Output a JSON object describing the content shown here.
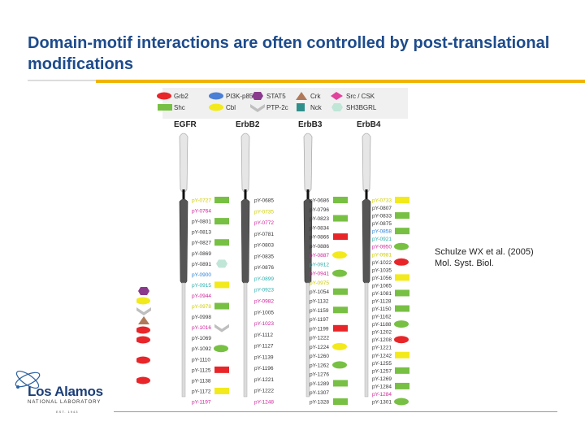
{
  "slide": {
    "title": "Domain-motif interactions are often controlled by post-translational modifications",
    "citation_line1": "Schulze WX et al. (2005)",
    "citation_line2": "Mol. Syst. Biol."
  },
  "legend": {
    "items": [
      {
        "label": "Grb2",
        "color": "#e8262a",
        "shape": "ellipse"
      },
      {
        "label": "PI3K-p85",
        "color": "#4a7fd6",
        "shape": "ellipse"
      },
      {
        "label": "STAT5",
        "color": "#8a3a8c",
        "shape": "hexagon"
      },
      {
        "label": "Crk",
        "color": "#b07a5a",
        "shape": "triangle"
      },
      {
        "label": "Src / CSK",
        "color": "#e0449c",
        "shape": "diamond"
      },
      {
        "label": "Shc",
        "color": "#77c043",
        "shape": "rect"
      },
      {
        "label": "Cbl",
        "color": "#f2ea1c",
        "shape": "ellipse"
      },
      {
        "label": "PTP-2c",
        "color": "#bfbfbf",
        "shape": "chevron"
      },
      {
        "label": "Nck",
        "color": "#2f8f8a",
        "shape": "square"
      },
      {
        "label": "SH3BGRL",
        "color": "#bfe6d6",
        "shape": "hexagon"
      }
    ]
  },
  "receptors": [
    {
      "name": "EGFR",
      "sites": [
        {
          "label": "pY-0727",
          "color": "#cccc00",
          "binder": "rect"
        },
        {
          "label": "pY-0764",
          "color": "#cc2299",
          "binder": "none"
        },
        {
          "label": "pY-0801",
          "color": "#333333",
          "binder": "none"
        },
        {
          "label": "pY-0813",
          "color": "#333333",
          "binder": "none"
        },
        {
          "label": "pY-0827",
          "color": "#333333",
          "binder": "none"
        },
        {
          "label": "pY-0869",
          "color": "#333333",
          "binder": "rect"
        },
        {
          "label": "pY-0891",
          "color": "#333333",
          "binder": "hex"
        },
        {
          "label": "pY-0900",
          "color": "#2a7fd6",
          "binder": "none"
        },
        {
          "label": "pY-0915",
          "color": "#2aaaaa",
          "binder": "rect"
        },
        {
          "label": "pY-0944",
          "color": "#cc2299",
          "binder": "rect"
        },
        {
          "label": "pY-0978",
          "color": "#cccc00",
          "binder": "none"
        },
        {
          "label": "pY-0998",
          "color": "#333333",
          "binder": "none"
        },
        {
          "label": "pY-1016",
          "color": "#cc2299",
          "binder": "chev"
        },
        {
          "label": "pY-1069",
          "color": "#333333",
          "binder": "ellipse"
        },
        {
          "label": "pY-1092",
          "color": "#333333",
          "binder": "ellipse"
        },
        {
          "label": "pY-1110",
          "color": "#333333",
          "binder": "rect"
        },
        {
          "label": "pY-1125",
          "color": "#333333",
          "binder": "rect"
        },
        {
          "label": "pY-1138",
          "color": "#333333",
          "binder": "rect"
        },
        {
          "label": "pY-1172",
          "color": "#333333",
          "binder": "rect"
        },
        {
          "label": "pY-1197",
          "color": "#cc2299",
          "binder": "ellipse"
        }
      ]
    },
    {
      "name": "ErbB2",
      "sites": [
        {
          "label": "pY-0685",
          "color": "#333333"
        },
        {
          "label": "pY-0735",
          "color": "#cccc00"
        },
        {
          "label": "pY-0772",
          "color": "#cc2299"
        },
        {
          "label": "pY-0781",
          "color": "#333333"
        },
        {
          "label": "pY-0803",
          "color": "#333333"
        },
        {
          "label": "pY-0835",
          "color": "#333333"
        },
        {
          "label": "pY-0876",
          "color": "#333333"
        },
        {
          "label": "pY-0899",
          "color": "#2aaaaa"
        },
        {
          "label": "pY-0923",
          "color": "#2aaaaa"
        },
        {
          "label": "pY-0982",
          "color": "#cc2299"
        },
        {
          "label": "pY-1005",
          "color": "#333333"
        },
        {
          "label": "pY-1023",
          "color": "#cc2299"
        },
        {
          "label": "pY-1112",
          "color": "#333333"
        },
        {
          "label": "pY-1127",
          "color": "#333333"
        },
        {
          "label": "pY-1139",
          "color": "#333333"
        },
        {
          "label": "pY-1196",
          "color": "#333333"
        },
        {
          "label": "pY-1221",
          "color": "#333333"
        },
        {
          "label": "pY-1222",
          "color": "#333333"
        },
        {
          "label": "pY-1248",
          "color": "#cc2299"
        }
      ]
    },
    {
      "name": "ErbB3",
      "sites": [
        {
          "label": "pY-0686",
          "color": "#333333"
        },
        {
          "label": "pY-0796",
          "color": "#333333"
        },
        {
          "label": "pY-0823",
          "color": "#333333"
        },
        {
          "label": "pY-0834",
          "color": "#333333"
        },
        {
          "label": "pY-0866",
          "color": "#333333"
        },
        {
          "label": "pY-0886",
          "color": "#333333"
        },
        {
          "label": "pY-0887",
          "color": "#cc2299"
        },
        {
          "label": "pY-0912",
          "color": "#2aaaaa"
        },
        {
          "label": "pY-0941",
          "color": "#cc2299"
        },
        {
          "label": "pY-0975",
          "color": "#cccc00"
        },
        {
          "label": "pY-1054",
          "color": "#333333"
        },
        {
          "label": "pY-1132",
          "color": "#333333"
        },
        {
          "label": "pY-1159",
          "color": "#333333"
        },
        {
          "label": "pY-1197",
          "color": "#333333"
        },
        {
          "label": "pY-1199",
          "color": "#333333"
        },
        {
          "label": "pY-1222",
          "color": "#333333"
        },
        {
          "label": "pY-1224",
          "color": "#333333"
        },
        {
          "label": "pY-1260",
          "color": "#333333"
        },
        {
          "label": "pY-1262",
          "color": "#333333"
        },
        {
          "label": "pY-1276",
          "color": "#333333"
        },
        {
          "label": "pY-1289",
          "color": "#333333"
        },
        {
          "label": "pY-1307",
          "color": "#333333"
        },
        {
          "label": "pY-1328",
          "color": "#333333"
        }
      ]
    },
    {
      "name": "ErbB4",
      "sites": [
        {
          "label": "pY-0733",
          "color": "#cccc00"
        },
        {
          "label": "pY-0807",
          "color": "#333333"
        },
        {
          "label": "pY-0833",
          "color": "#333333"
        },
        {
          "label": "pY-0875",
          "color": "#333333"
        },
        {
          "label": "pY-0858",
          "color": "#2a7fd6"
        },
        {
          "label": "pY-0921",
          "color": "#2aaaaa"
        },
        {
          "label": "pY-0950",
          "color": "#cc2299"
        },
        {
          "label": "pY-0981",
          "color": "#cccc00"
        },
        {
          "label": "pY-1022",
          "color": "#333333"
        },
        {
          "label": "pY-1035",
          "color": "#333333"
        },
        {
          "label": "pY-1056",
          "color": "#333333"
        },
        {
          "label": "pY-1065",
          "color": "#333333"
        },
        {
          "label": "pY-1081",
          "color": "#333333"
        },
        {
          "label": "pY-1128",
          "color": "#333333"
        },
        {
          "label": "pY-1150",
          "color": "#333333"
        },
        {
          "label": "pY-1162",
          "color": "#333333"
        },
        {
          "label": "pY-1188",
          "color": "#333333"
        },
        {
          "label": "pY-1202",
          "color": "#333333"
        },
        {
          "label": "pY-1208",
          "color": "#333333"
        },
        {
          "label": "pY-1221",
          "color": "#333333"
        },
        {
          "label": "pY-1242",
          "color": "#333333"
        },
        {
          "label": "pY-1255",
          "color": "#333333"
        },
        {
          "label": "pY-1257",
          "color": "#333333"
        },
        {
          "label": "pY-1269",
          "color": "#333333"
        },
        {
          "label": "pY-1284",
          "color": "#333333"
        },
        {
          "label": "pY-1284",
          "color": "#cc2299"
        },
        {
          "label": "pY-1301",
          "color": "#333333"
        }
      ]
    }
  ],
  "logo": {
    "name": "Los Alamos",
    "sub": "NATIONAL LABORATORY",
    "est": "EST. 1943"
  }
}
